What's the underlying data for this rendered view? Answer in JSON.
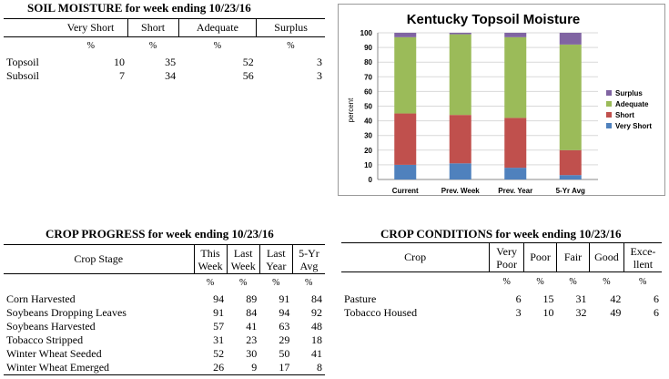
{
  "soil": {
    "title": "SOIL MOISTURE for week ending 10/23/16",
    "headers": [
      "Very Short",
      "Short",
      "Adequate",
      "Surplus"
    ],
    "pct": [
      "%",
      "%",
      "%",
      "%"
    ],
    "rows": [
      {
        "label": "Topsoil",
        "values": [
          "10",
          "35",
          "52",
          "3"
        ]
      },
      {
        "label": "Subsoil",
        "values": [
          "7",
          "34",
          "56",
          "3"
        ]
      }
    ]
  },
  "chart_data": {
    "type": "bar",
    "title": "Kentucky Topsoil Moisture",
    "ylabel": "percent",
    "ylim": [
      0,
      100
    ],
    "yticks": [
      "0",
      "10",
      "20",
      "30",
      "40",
      "50",
      "60",
      "70",
      "80",
      "90",
      "100"
    ],
    "categories": [
      "Current",
      "Prev. Week",
      "Prev. Year",
      "5-Yr Avg"
    ],
    "series": [
      {
        "name": "Very Short",
        "color": "#4F81BD",
        "values": [
          10,
          11,
          8,
          3
        ]
      },
      {
        "name": "Short",
        "color": "#C0504D",
        "values": [
          35,
          33,
          34,
          17
        ]
      },
      {
        "name": "Adequate",
        "color": "#9BBB59",
        "values": [
          52,
          55,
          55,
          72
        ]
      },
      {
        "name": "Surplus",
        "color": "#8064A2",
        "values": [
          3,
          1,
          3,
          8
        ]
      }
    ],
    "legend_order": [
      "Surplus",
      "Adequate",
      "Short",
      "Very Short"
    ],
    "legend_position": "right",
    "grid": true
  },
  "progress": {
    "title": "CROP PROGRESS for week ending 10/23/16",
    "stage_header": "Crop Stage",
    "col_headers": [
      [
        "This",
        "Week"
      ],
      [
        "Last",
        "Week"
      ],
      [
        "Last",
        "Year"
      ],
      [
        "5-Yr",
        "Avg"
      ]
    ],
    "pct": [
      "%",
      "%",
      "%",
      "%"
    ],
    "rows": [
      {
        "label": "Corn Harvested",
        "values": [
          "94",
          "89",
          "91",
          "84"
        ]
      },
      {
        "label": "Soybeans Dropping Leaves",
        "values": [
          "91",
          "84",
          "94",
          "92"
        ]
      },
      {
        "label": "Soybeans Harvested",
        "values": [
          "57",
          "41",
          "63",
          "48"
        ]
      },
      {
        "label": "Tobacco Stripped",
        "values": [
          "31",
          "23",
          "29",
          "18"
        ]
      },
      {
        "label": "Winter Wheat Seeded",
        "values": [
          "52",
          "30",
          "50",
          "41"
        ]
      },
      {
        "label": "Winter Wheat Emerged",
        "values": [
          "26",
          "9",
          "17",
          "8"
        ]
      }
    ]
  },
  "conditions": {
    "title": "CROP CONDITIONS for week ending 10/23/16",
    "crop_header": "Crop",
    "col_headers": [
      [
        "Very",
        "Poor"
      ],
      [
        "Poor"
      ],
      [
        "Fair"
      ],
      [
        "Good"
      ],
      [
        "Exce-",
        "llent"
      ]
    ],
    "pct": [
      "%",
      "%",
      "%",
      "%",
      "%"
    ],
    "rows": [
      {
        "label": "Pasture",
        "values": [
          "6",
          "15",
          "31",
          "42",
          "6"
        ]
      },
      {
        "label": "Tobacco Housed",
        "values": [
          "3",
          "10",
          "32",
          "49",
          "6"
        ]
      }
    ]
  }
}
